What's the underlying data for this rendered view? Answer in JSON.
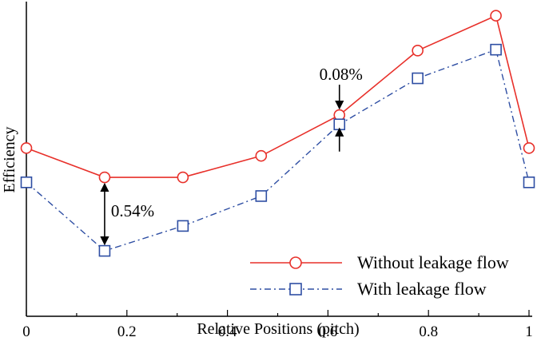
{
  "chart_data": {
    "type": "line",
    "title": "",
    "xlabel": "Relative Positions (pitch)",
    "ylabel": "Efficiency",
    "xlim": [
      0,
      1
    ],
    "ylim": [
      0,
      1
    ],
    "x_ticks": [
      "0",
      "0.2",
      "0.4",
      "0.6",
      "0.8",
      "1"
    ],
    "x_tick_values": [
      0,
      0.2,
      0.4,
      0.6,
      0.8,
      1
    ],
    "y_ticks_labeled": false,
    "grid": false,
    "legend_position": "bottom-right",
    "series": [
      {
        "name": "Without leakage flow",
        "color": "#e8302a",
        "line_style": "solid",
        "marker": "circle",
        "x": [
          0,
          0.1557,
          0.3114,
          0.4671,
          0.6228,
          0.7785,
          0.9342,
          1.0
        ],
        "y": [
          0.54,
          0.446,
          0.446,
          0.515,
          0.646,
          0.853,
          0.965,
          0.54
        ]
      },
      {
        "name": "With leakage flow",
        "color": "#2e4ea3",
        "line_style": "dash-dot",
        "marker": "square",
        "x": [
          0,
          0.1557,
          0.3114,
          0.4671,
          0.6228,
          0.7785,
          0.9342,
          1.0
        ],
        "y": [
          0.43,
          0.21,
          0.29,
          0.386,
          0.616,
          0.764,
          0.856,
          0.43
        ]
      }
    ],
    "annotations": [
      {
        "text": "0.54%",
        "x": 0.1557,
        "between_y": [
          0.21,
          0.446
        ]
      },
      {
        "text": "0.08%",
        "x": 0.6228,
        "between_y": [
          0.616,
          0.646
        ]
      }
    ]
  }
}
